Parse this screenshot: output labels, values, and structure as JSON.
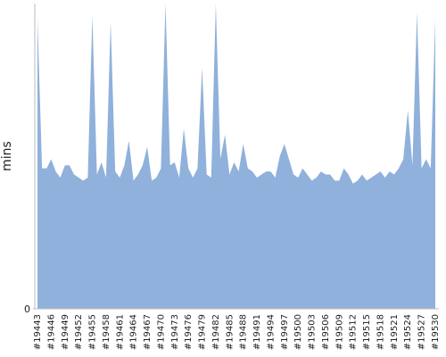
{
  "chart_data": {
    "type": "area",
    "ylabel": "mins",
    "color": "#8fb1db",
    "categories": [
      "#19443",
      null,
      null,
      "#19446",
      null,
      null,
      "#19449",
      null,
      null,
      "#19452",
      null,
      null,
      "#19455",
      null,
      null,
      "#19458",
      null,
      null,
      "#19461",
      null,
      null,
      "#19464",
      null,
      null,
      "#19467",
      null,
      null,
      "#19470",
      null,
      null,
      "#19473",
      null,
      null,
      "#19476",
      null,
      null,
      "#19479",
      null,
      null,
      "#19482",
      null,
      null,
      "#19485",
      null,
      null,
      "#19488",
      null,
      null,
      "#19491",
      null,
      null,
      "#19494",
      null,
      null,
      "#19497",
      null,
      null,
      "#19500",
      null,
      null,
      "#19503",
      null,
      null,
      "#19506",
      null,
      null,
      "#19509",
      null,
      null,
      "#19512",
      null,
      null,
      "#19515",
      null,
      null,
      "#19518",
      null,
      null,
      "#19521",
      null,
      null,
      "#19524",
      null,
      null,
      "#19527",
      null,
      null,
      "#19530"
    ],
    "values": [
      95,
      46,
      46,
      49,
      45,
      43,
      47,
      47,
      44,
      43,
      42,
      43,
      96,
      44,
      48,
      43,
      94,
      45,
      43,
      47,
      55,
      42,
      44,
      47,
      53,
      42,
      43,
      46,
      100,
      47,
      48,
      43,
      59,
      46,
      43,
      46,
      79,
      44,
      43,
      100,
      49,
      57,
      44,
      48,
      45,
      54,
      46,
      45,
      43,
      44,
      45,
      45,
      43,
      50,
      54,
      49,
      44,
      43,
      46,
      44,
      42,
      43,
      45,
      44,
      44,
      42,
      42,
      46,
      44,
      41,
      42,
      44,
      42,
      43,
      44,
      45,
      43,
      45,
      44,
      46,
      49,
      65,
      47,
      97,
      46,
      49,
      46,
      95
    ],
    "ylim": [
      0,
      100
    ],
    "yticks": [
      0
    ]
  }
}
